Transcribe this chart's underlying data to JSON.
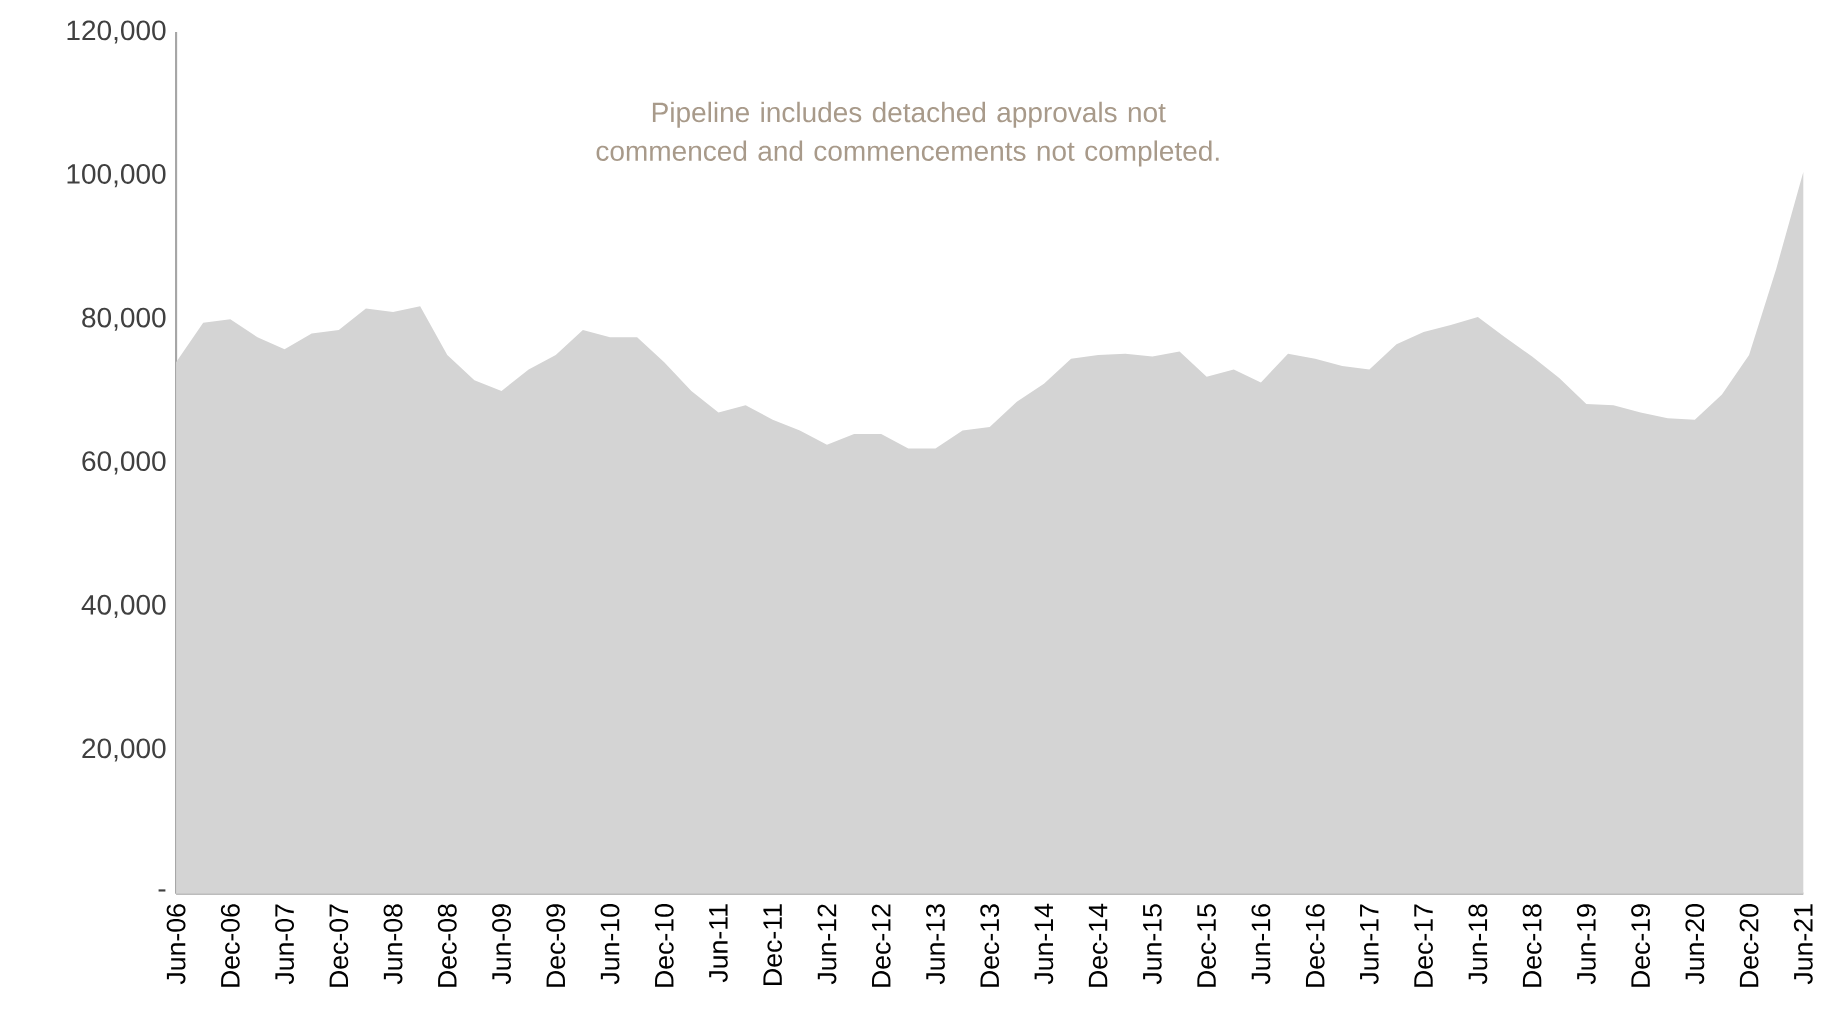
{
  "chart_data": {
    "type": "area",
    "color": "#d4d4d4",
    "categories": [
      "Jun-06",
      null,
      "Dec-06",
      null,
      "Jun-07",
      null,
      "Dec-07",
      null,
      "Jun-08",
      null,
      "Dec-08",
      null,
      "Jun-09",
      null,
      "Dec-09",
      null,
      "Jun-10",
      null,
      "Dec-10",
      null,
      "Jun-11",
      null,
      "Dec-11",
      null,
      "Jun-12",
      null,
      "Dec-12",
      null,
      "Jun-13",
      null,
      "Dec-13",
      null,
      "Jun-14",
      null,
      "Dec-14",
      null,
      "Jun-15",
      null,
      "Dec-15",
      null,
      "Jun-16",
      null,
      "Dec-16",
      null,
      "Jun-17",
      null,
      "Dec-17",
      null,
      "Jun-18",
      null,
      "Dec-18",
      null,
      "Jun-19",
      null,
      "Dec-19",
      null,
      "Jun-20",
      null,
      "Dec-20",
      null,
      "Jun-21"
    ],
    "values": [
      74000,
      79500,
      80000,
      77500,
      75800,
      78000,
      78500,
      81500,
      81000,
      81800,
      75000,
      71500,
      70000,
      73000,
      75000,
      78500,
      77500,
      77500,
      74000,
      70000,
      67000,
      68000,
      66000,
      64500,
      62500,
      64000,
      64000,
      62000,
      62000,
      64500,
      65000,
      68500,
      71000,
      74500,
      75000,
      75200,
      74800,
      75500,
      72000,
      73000,
      71200,
      75200,
      74500,
      73500,
      73000,
      76500,
      78200,
      79200,
      80300,
      77500,
      74800,
      71800,
      68200,
      68000,
      67000,
      66200,
      66000,
      69500,
      75000,
      87000,
      100500
    ],
    "ylim": [
      0,
      120000
    ],
    "yticks": [
      {
        "value": 0,
        "label": "-"
      },
      {
        "value": 20000,
        "label": "20,000"
      },
      {
        "value": 40000,
        "label": "40,000"
      },
      {
        "value": 60000,
        "label": "60,000"
      },
      {
        "value": 80000,
        "label": "80,000"
      },
      {
        "value": 100000,
        "label": "100,000"
      },
      {
        "value": 120000,
        "label": "120,000"
      }
    ],
    "grid": false,
    "annotations": [
      "Pipeline includes detached approvals not commenced and commencements not completed."
    ]
  }
}
